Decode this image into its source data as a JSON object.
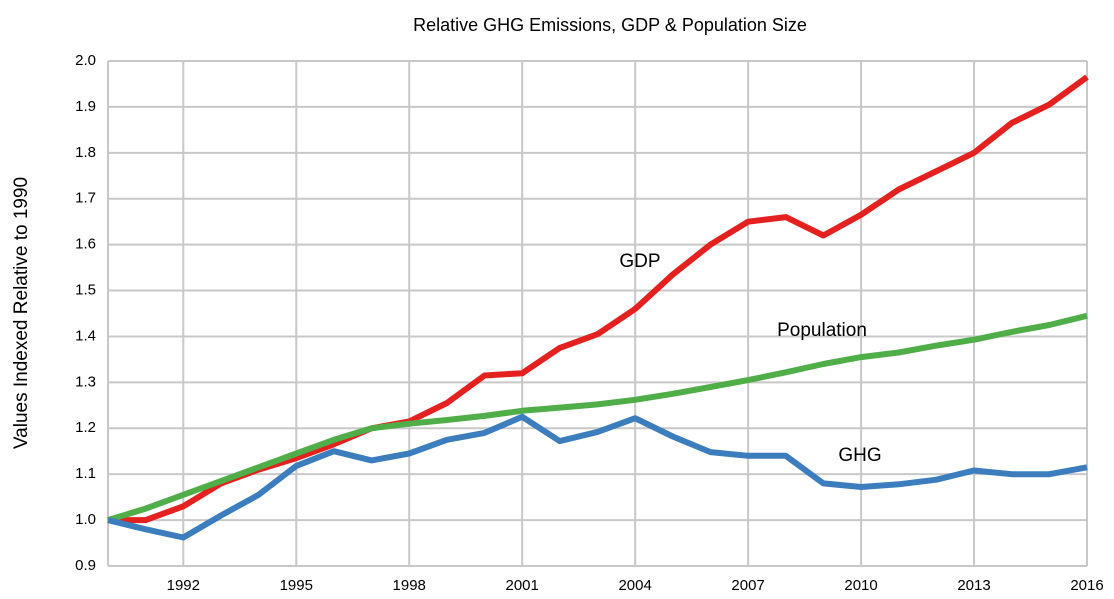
{
  "chart_data": {
    "type": "line",
    "title": "Relative GHG Emissions, GDP & Population Size",
    "y_label": "Values Indexed Relative to 1990",
    "x": [
      1990,
      1991,
      1992,
      1993,
      1994,
      1995,
      1996,
      1997,
      1998,
      1999,
      2000,
      2001,
      2002,
      2003,
      2004,
      2005,
      2006,
      2007,
      2008,
      2009,
      2010,
      2011,
      2012,
      2013,
      2014,
      2015,
      2016
    ],
    "series": [
      {
        "name": "GDP",
        "color": "#e5211f",
        "values": [
          1.0,
          1.0,
          1.03,
          1.08,
          1.11,
          1.135,
          1.165,
          1.2,
          1.215,
          1.255,
          1.315,
          1.32,
          1.375,
          1.405,
          1.46,
          1.535,
          1.6,
          1.65,
          1.66,
          1.62,
          1.665,
          1.72,
          1.76,
          1.8,
          1.865,
          1.905,
          1.965
        ]
      },
      {
        "name": "Population",
        "color": "#4fae48",
        "values": [
          1.0,
          1.025,
          1.055,
          1.085,
          1.115,
          1.145,
          1.175,
          1.2,
          1.21,
          1.218,
          1.227,
          1.238,
          1.245,
          1.252,
          1.262,
          1.275,
          1.29,
          1.305,
          1.322,
          1.34,
          1.355,
          1.365,
          1.38,
          1.393,
          1.41,
          1.425,
          1.445
        ]
      },
      {
        "name": "GHG",
        "color": "#3b7dbd",
        "values": [
          1.0,
          0.98,
          0.962,
          1.01,
          1.055,
          1.118,
          1.15,
          1.13,
          1.145,
          1.175,
          1.19,
          1.225,
          1.172,
          1.192,
          1.222,
          1.182,
          1.148,
          1.14,
          1.14,
          1.08,
          1.072,
          1.078,
          1.088,
          1.108,
          1.1,
          1.1,
          1.115
        ]
      }
    ],
    "xlim": [
      1990,
      2016
    ],
    "xticks": [
      1992,
      1995,
      1998,
      2001,
      2004,
      2007,
      2010,
      2013,
      2016
    ],
    "ylim": [
      0.9,
      2.0
    ],
    "yticks": [
      0.9,
      {
        "value": 1,
        "label": "1.0"
      },
      1.1,
      1.2,
      1.3,
      1.4,
      1.5,
      1.6,
      1.7,
      1.8,
      1.9,
      {
        "value": 2,
        "label": "2.0"
      }
    ],
    "grid": true
  }
}
